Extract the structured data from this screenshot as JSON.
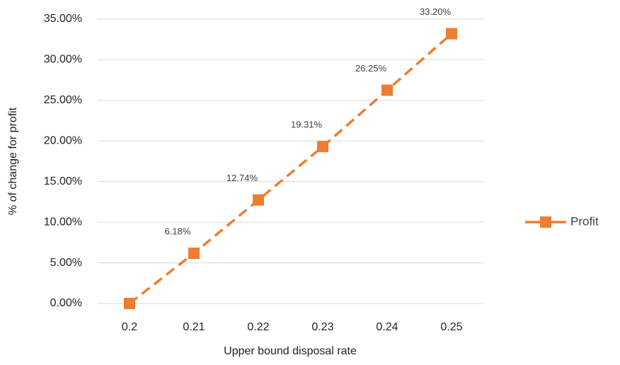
{
  "chart_data": {
    "type": "line",
    "x_label": "Upper bound disposal rate",
    "y_label": "% of change for profit",
    "categories": [
      "0.2",
      "0.21",
      "0.22",
      "0.23",
      "0.24",
      "0.25"
    ],
    "series": [
      {
        "name": "Profit",
        "color": "#ed7d31",
        "values": [
          0,
          6.18,
          12.74,
          19.31,
          26.25,
          33.2
        ],
        "value_labels": [
          null,
          "6.18%",
          "12.74%",
          "19.31%",
          "26.25%",
          "33.20%"
        ]
      }
    ],
    "ylim": [
      0,
      35
    ],
    "yticks": [
      {
        "value": 0,
        "label": "0.00%"
      },
      {
        "value": 5,
        "label": "5.00%"
      },
      {
        "value": 10,
        "label": "10.00%"
      },
      {
        "value": 15,
        "label": "15.00%"
      },
      {
        "value": 20,
        "label": "20.00%"
      },
      {
        "value": 25,
        "label": "25.00%"
      },
      {
        "value": 30,
        "label": "30.00%"
      },
      {
        "value": 35,
        "label": "35.00%"
      }
    ],
    "grid": true,
    "legend": "right",
    "dashed": true
  }
}
